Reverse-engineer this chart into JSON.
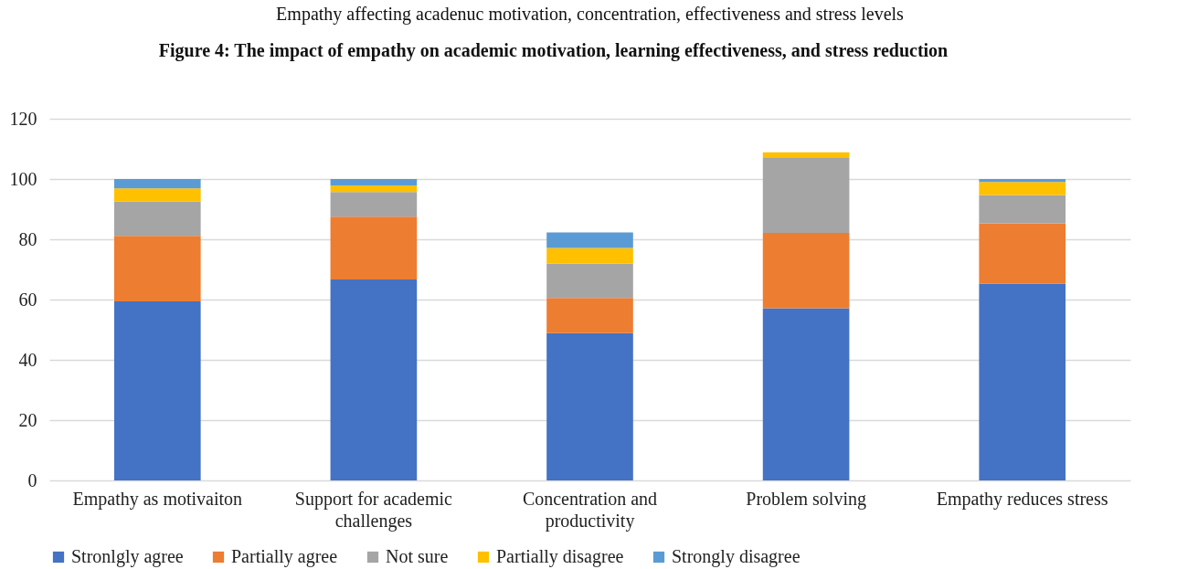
{
  "chart_data": {
    "type": "bar",
    "stacked": true,
    "title": "Empathy affecting acadenuc motivation, concentration, effectiveness and stress levels",
    "annotations": [
      "Figure 4: The impact of empathy on academic motivation, learning effectiveness, and stress reduction"
    ],
    "categories": [
      "Empathy as motivaiton",
      "Support for academic challenges",
      "Concentration and productivity",
      "Problem solving",
      "Empathy reduces stress"
    ],
    "series": [
      {
        "name": "Stronlgly agree",
        "color": "#4472c4",
        "values": [
          59.4,
          66.7,
          48.9,
          57.1,
          65.3
        ]
      },
      {
        "name": "Partially agree",
        "color": "#ed7d31",
        "values": [
          21.7,
          20.8,
          11.6,
          25.0,
          20.0
        ]
      },
      {
        "name": "Not sure",
        "color": "#a5a5a5",
        "values": [
          11.5,
          8.2,
          11.5,
          25.1,
          9.4
        ]
      },
      {
        "name": "Partially disagree",
        "color": "#ffc000",
        "values": [
          4.3,
          2.2,
          5.1,
          1.7,
          4.3
        ]
      },
      {
        "name": "Strongly disagree",
        "color": "#5b9bd5",
        "values": [
          3.1,
          2.1,
          5.2,
          0,
          1.0
        ]
      }
    ],
    "ylim": [
      0,
      120
    ],
    "yticks": [
      0,
      20,
      40,
      60,
      80,
      100,
      120
    ],
    "grid": "y",
    "legend": "bottom"
  }
}
